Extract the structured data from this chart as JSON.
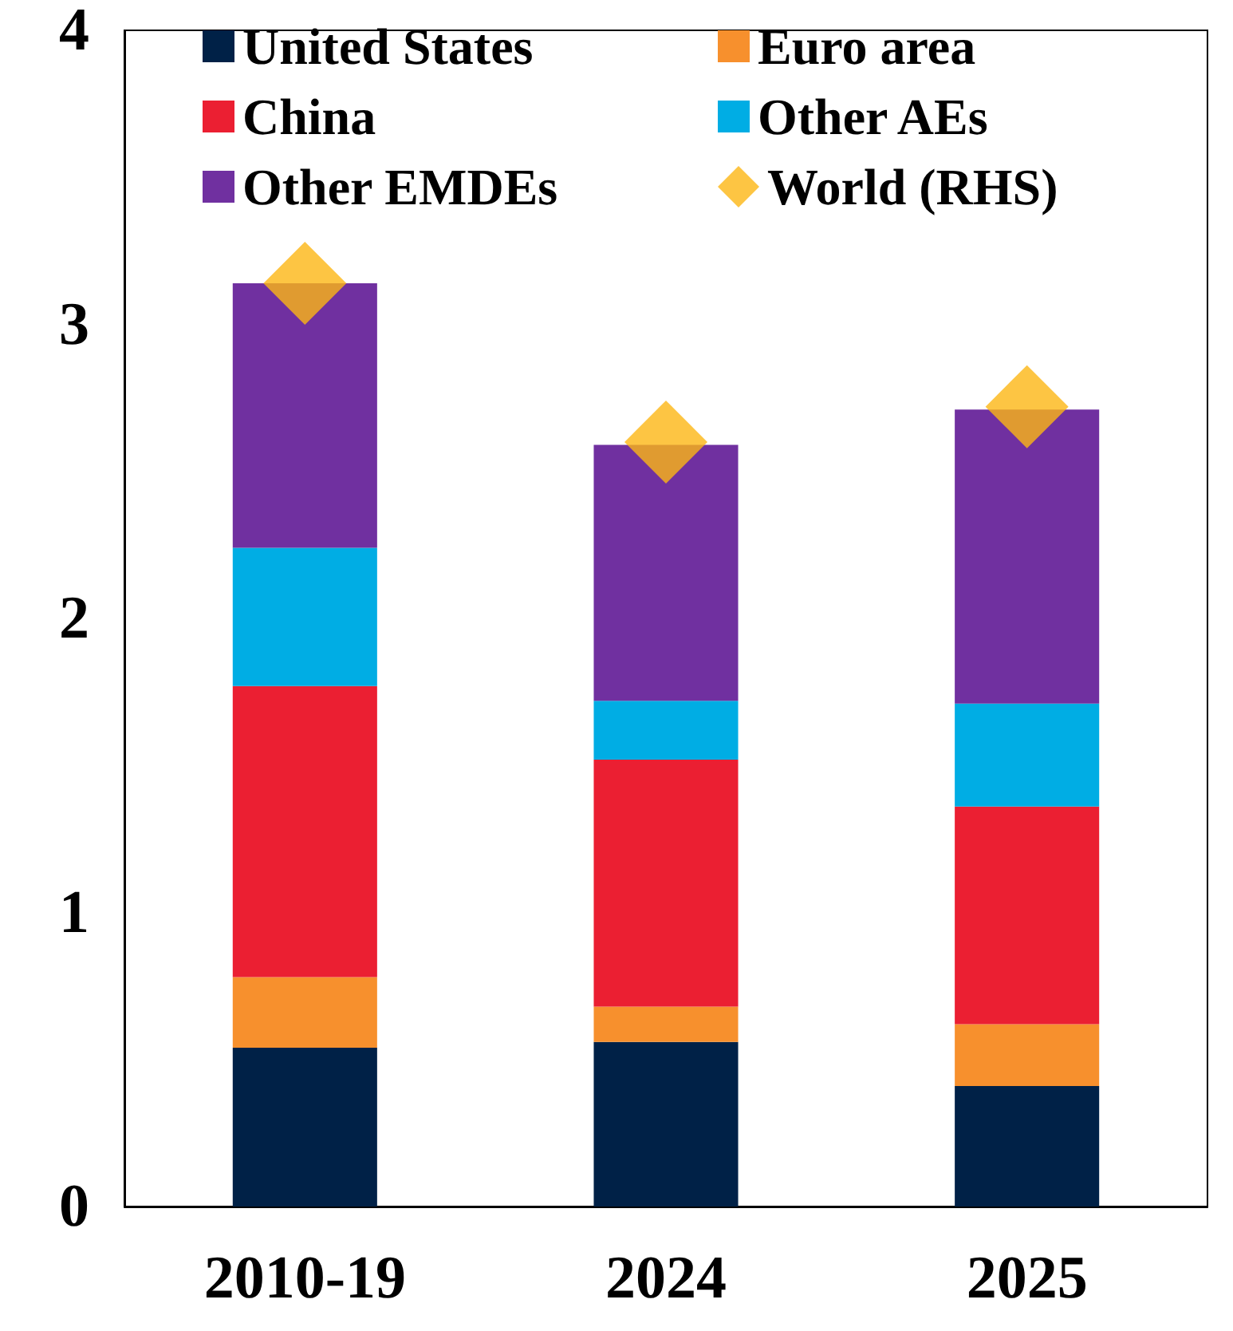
{
  "chart_data": {
    "type": "bar",
    "stacked": true,
    "categories": [
      "2010-19",
      "2024",
      "2025"
    ],
    "series": [
      {
        "name": "United States",
        "color": "#002147",
        "values": [
          0.54,
          0.56,
          0.41
        ]
      },
      {
        "name": "Euro area",
        "color": "#f7902d",
        "values": [
          0.24,
          0.12,
          0.21
        ]
      },
      {
        "name": "China",
        "color": "#eb1f32",
        "values": [
          0.99,
          0.84,
          0.74
        ]
      },
      {
        "name": "Other AEs",
        "color": "#00ade4",
        "values": [
          0.47,
          0.2,
          0.35
        ]
      },
      {
        "name": "Other EMDEs",
        "color": "#7030a0",
        "values": [
          0.9,
          0.87,
          1.0
        ]
      },
      {
        "name": "World (RHS)",
        "type": "scatter",
        "marker": "diamond",
        "color": "#fdb714",
        "values": [
          3.14,
          2.6,
          2.72
        ]
      }
    ],
    "ylim": [
      0,
      4
    ],
    "yticks": [
      0,
      1,
      2,
      3,
      4
    ],
    "grid": false,
    "legend": "top"
  }
}
